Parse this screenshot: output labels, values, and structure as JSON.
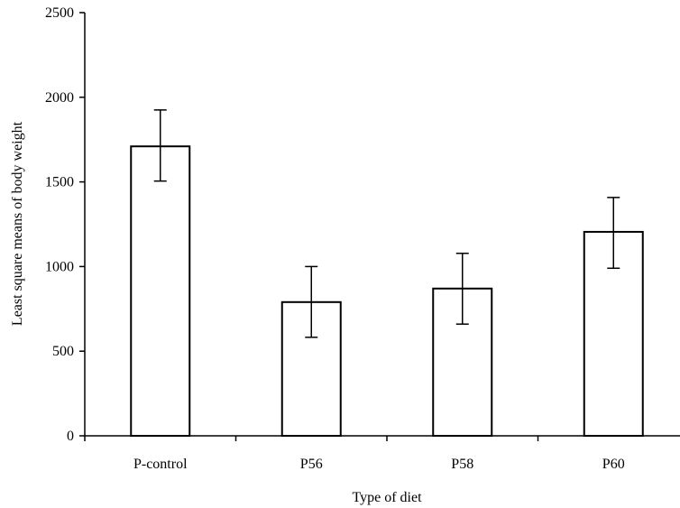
{
  "chart_data": {
    "type": "bar",
    "xlabel": "Type of diet",
    "ylabel": "Least square means of body weight",
    "categories": [
      "P-control",
      "P56",
      "P58",
      "P60"
    ],
    "values": [
      1710,
      790,
      870,
      1205
    ],
    "error_low": [
      1505,
      582,
      660,
      990
    ],
    "error_high": [
      1925,
      1000,
      1078,
      1408
    ],
    "ylim": [
      0,
      2500
    ],
    "yticks": [
      0,
      500,
      1000,
      1500,
      2000,
      2500
    ],
    "grid": false,
    "legend": "none",
    "bar_fill": "#ffffff",
    "bar_stroke": "#000000"
  }
}
